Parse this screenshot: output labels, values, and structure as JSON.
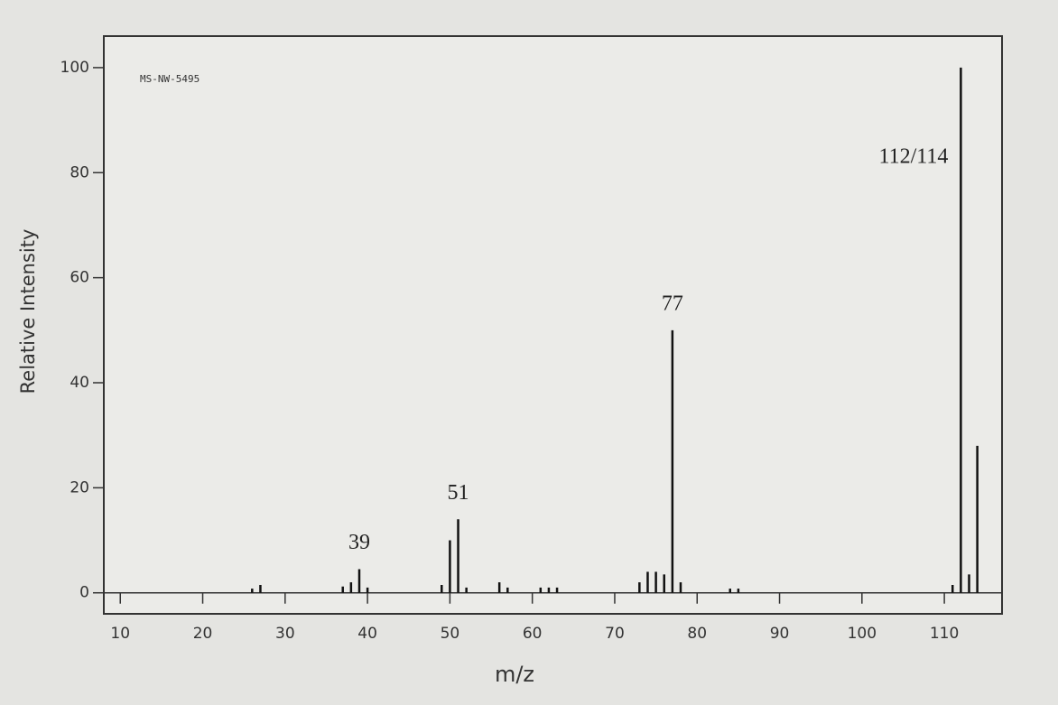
{
  "chart_data": {
    "type": "stick",
    "label": "MS-NW-5495",
    "xlabel": "m/z",
    "ylabel": "Relative Intensity",
    "x": [
      26,
      27,
      37,
      38,
      39,
      40,
      49,
      50,
      51,
      52,
      56,
      57,
      61,
      62,
      63,
      73,
      74,
      75,
      76,
      77,
      78,
      84,
      85,
      111,
      112,
      113,
      114
    ],
    "values": [
      0.8,
      1.5,
      1.2,
      2,
      4.5,
      1,
      1.5,
      10,
      14,
      1,
      2,
      1,
      1,
      1,
      1,
      2,
      4,
      4,
      3.5,
      50,
      2,
      0.8,
      0.8,
      1.5,
      100,
      3.5,
      28
    ],
    "color": "#111111",
    "annotations": [
      {
        "text": "39",
        "x": 39
      },
      {
        "text": "51",
        "x": 51
      },
      {
        "text": "77",
        "x": 77
      },
      {
        "text": "112/114",
        "x": 112
      }
    ],
    "xlim": [
      8,
      117
    ],
    "xticks": [
      10,
      20,
      30,
      40,
      50,
      60,
      70,
      80,
      90,
      100,
      110
    ],
    "ylim": [
      -4,
      106
    ],
    "yticks": [
      0,
      20,
      40,
      60,
      80,
      100
    ]
  }
}
